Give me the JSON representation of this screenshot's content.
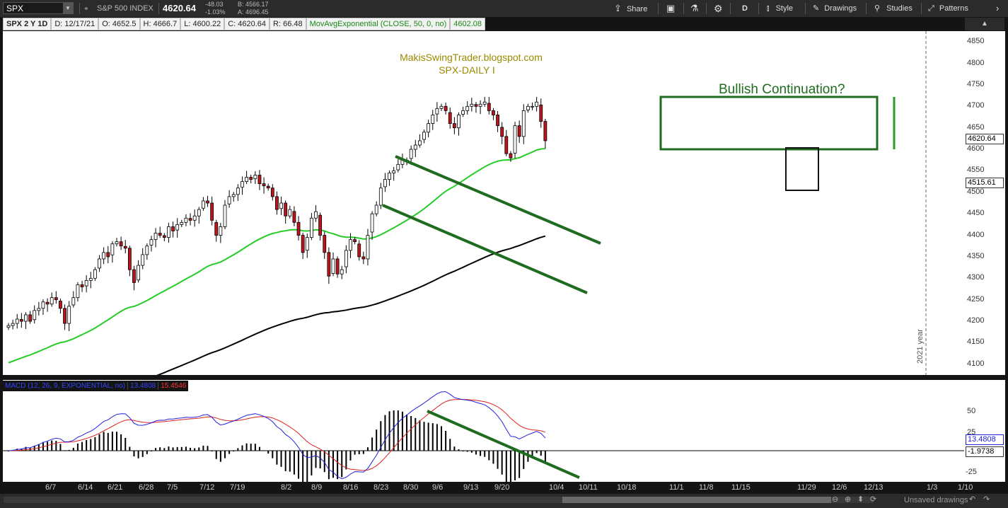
{
  "toolbar": {
    "symbol": "SPX",
    "description": "S&P 500 INDEX",
    "last_price": "4620.64",
    "change": "-48.03",
    "change_pct": "-1.03%",
    "bid": "B: 4566.17",
    "ask": "A: 4696.45",
    "share_label": "Share",
    "period": "D",
    "style_label": "Style",
    "drawings_label": "Drawings",
    "studies_label": "Studies",
    "patterns_label": "Patterns"
  },
  "info": {
    "chart_label": "SPX 2 Y 1D",
    "date": "D: 12/17/21",
    "open": "O: 4652.5",
    "high": "H: 4666.7",
    "low": "L: 4600.22",
    "close": "C: 4620.64",
    "range": "R: 66.48",
    "ema_label": "MovAvgExponential (CLOSE, 50, 0, no)",
    "ema_value": "4602.08"
  },
  "annotations": {
    "blog": "MakisSwingTrader.blogspot.com",
    "subtitle": "SPX-DAILY  I",
    "pattern": "Bullish Continuation?",
    "year_marker": "2021 year"
  },
  "price_axis": {
    "ticks": [
      "4850",
      "4800",
      "4750",
      "4700",
      "4650",
      "4600",
      "4550",
      "4500",
      "4450",
      "4400",
      "4350",
      "4300",
      "4250",
      "4200",
      "4150",
      "4100"
    ],
    "last_badge": "4620.64",
    "ema200_badge": "4515.61"
  },
  "macd": {
    "label": "MACD (12, 26, 9, EXPONENTIAL, no)",
    "value": "13.4808",
    "avg": "15.4546",
    "ticks": [
      "50",
      "25",
      "-25"
    ],
    "value_badge": "13.4808",
    "diff_badge": "-1.9738"
  },
  "date_axis": [
    "6/7",
    "6/14",
    "6/21",
    "6/28",
    "7/5",
    "7/12",
    "7/19",
    "8/2",
    "8/9",
    "8/16",
    "8/23",
    "8/30",
    "9/6",
    "9/13",
    "9/20",
    "10/4",
    "10/11",
    "10/18",
    "11/1",
    "11/8",
    "11/15",
    "11/29",
    "12/6",
    "12/13",
    "1/3",
    "1/10"
  ],
  "status": {
    "unsaved": "Unsaved drawings"
  },
  "colors": {
    "ema50": "#26cc26",
    "ema200": "#000000",
    "trendline": "#1f6b1f",
    "down_candle": "#c0141c",
    "up_candle": "#ffffff",
    "annotation_text": "#9a8a00",
    "macd_line": "#2222dd",
    "signal_line": "#dd2222"
  },
  "chart_data": {
    "type": "candlestick",
    "symbol": "SPX",
    "period": "daily",
    "ylim": [
      4075,
      4875
    ],
    "close": [
      4190,
      4195,
      4205,
      4200,
      4215,
      4200,
      4225,
      4230,
      4245,
      4240,
      4255,
      4250,
      4230,
      4195,
      4235,
      4255,
      4285,
      4280,
      4295,
      4300,
      4320,
      4345,
      4360,
      4350,
      4380,
      4385,
      4375,
      4370,
      4320,
      4290,
      4330,
      4355,
      4375,
      4390,
      4405,
      4400,
      4395,
      4420,
      4410,
      4425,
      4430,
      4440,
      4435,
      4445,
      4460,
      4480,
      4475,
      4435,
      4400,
      4420,
      4470,
      4490,
      4495,
      4510,
      4525,
      4535,
      4530,
      4540,
      4520,
      4515,
      4510,
      4490,
      4460,
      4475,
      4445,
      4460,
      4430,
      4400,
      4360,
      4395,
      4440,
      4455,
      4400,
      4360,
      4305,
      4345,
      4310,
      4320,
      4365,
      4390,
      4385,
      4350,
      4345,
      4400,
      4450,
      4470,
      4510,
      4530,
      4545,
      4550,
      4565,
      4575,
      4575,
      4600,
      4610,
      4620,
      4640,
      4660,
      4680,
      4695,
      4700,
      4690,
      4660,
      4650,
      4680,
      4690,
      4700,
      4705,
      4700,
      4705,
      4710,
      4690,
      4680,
      4655,
      4630,
      4590,
      4580,
      4655,
      4630,
      4690,
      4700,
      4700,
      4710,
      4665,
      4620
    ],
    "ema50_end": 4602.08,
    "ema200_end": 4515.61,
    "pattern": {
      "name": "Bullish Continuation?",
      "upper": 4720,
      "lower": 4600
    },
    "channel": {
      "upper_start": [
        4580,
        4420
      ],
      "lower_start": [
        4480,
        4270
      ]
    }
  }
}
